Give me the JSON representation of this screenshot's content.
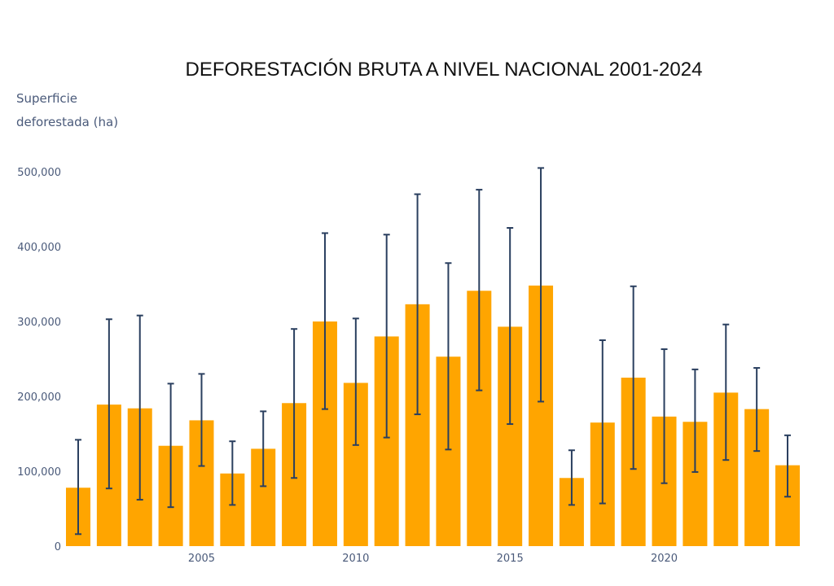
{
  "chart_data": {
    "type": "bar",
    "title": "DEFORESTACIÓN BRUTA A NIVEL NACIONAL 2001-2024",
    "ylabel_lines": [
      "Superficie",
      "deforestada (ha)"
    ],
    "xlabel": "",
    "x": [
      2001,
      2002,
      2003,
      2004,
      2005,
      2006,
      2007,
      2008,
      2009,
      2010,
      2011,
      2012,
      2013,
      2014,
      2015,
      2016,
      2017,
      2018,
      2019,
      2020,
      2021,
      2022,
      2023,
      2024
    ],
    "values": [
      78000,
      189000,
      184000,
      134000,
      168000,
      97000,
      130000,
      191000,
      300000,
      218000,
      280000,
      323000,
      253000,
      341000,
      293000,
      348000,
      91000,
      165000,
      225000,
      173000,
      166000,
      205000,
      183000,
      108000
    ],
    "error_upper": [
      142000,
      303000,
      308000,
      217000,
      230000,
      140000,
      180000,
      290000,
      418000,
      304000,
      416000,
      470000,
      378000,
      476000,
      425000,
      505000,
      128000,
      275000,
      347000,
      263000,
      236000,
      296000,
      238000,
      148000
    ],
    "error_lower": [
      16000,
      77000,
      62000,
      52000,
      107000,
      55000,
      80000,
      91000,
      183000,
      135000,
      145000,
      176000,
      129000,
      208000,
      163000,
      193000,
      55000,
      57000,
      103000,
      84000,
      99000,
      115000,
      127000,
      66000
    ],
    "ylim": [
      0,
      530000
    ],
    "yticks": [
      0,
      100000,
      200000,
      300000,
      400000,
      500000
    ],
    "ytick_labels": [
      "0",
      "100,000",
      "200,000",
      "300,000",
      "400,000",
      "500,000"
    ],
    "xticks": [
      2005,
      2010,
      2015,
      2020
    ],
    "xtick_labels": [
      "2005",
      "2010",
      "2015",
      "2020"
    ],
    "grid": false,
    "colors": {
      "bar": "#FFA500",
      "error_bar": "#2a3f5f"
    }
  }
}
